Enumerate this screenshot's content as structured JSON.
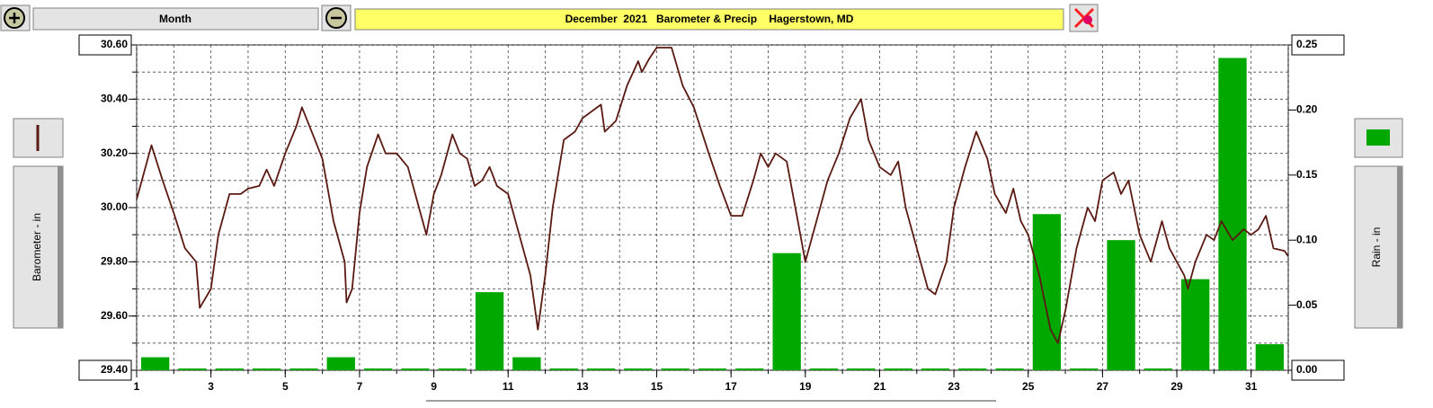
{
  "ui": {
    "period_label": "Month"
  },
  "chart_data": {
    "type": "combo",
    "title": "December  2021   Barometer & Precip    Hagerstown, MD",
    "ylabel": "Barometer - in",
    "y2label": "Rain - in",
    "xlim": [
      1,
      32
    ],
    "xticks": [
      1,
      3,
      5,
      7,
      9,
      11,
      13,
      15,
      17,
      19,
      21,
      23,
      25,
      27,
      29,
      31
    ],
    "xgrid": [
      1,
      2,
      3,
      4,
      5,
      6,
      7,
      8,
      9,
      10,
      11,
      12,
      13,
      14,
      15,
      16,
      17,
      18,
      19,
      20,
      21,
      22,
      23,
      24,
      25,
      26,
      27,
      28,
      29,
      30,
      31,
      32
    ],
    "ylim": [
      29.4,
      30.6
    ],
    "yticks": [
      {
        "value": 29.4,
        "label": "29.40"
      },
      {
        "value": 29.6,
        "label": "29.60"
      },
      {
        "value": 29.8,
        "label": "29.80"
      },
      {
        "value": 30.0,
        "label": "30.00"
      },
      {
        "value": 30.2,
        "label": "30.20"
      },
      {
        "value": 30.4,
        "label": "30.40"
      },
      {
        "value": 30.6,
        "label": "30.60"
      }
    ],
    "ygrid": [
      29.4,
      29.5,
      29.6,
      29.7,
      29.8,
      29.9,
      30.0,
      30.1,
      30.2,
      30.3,
      30.4,
      30.5,
      30.6
    ],
    "y2lim": [
      0,
      0.25
    ],
    "y2ticks": [
      {
        "value": 0,
        "label": "0.00"
      },
      {
        "value": 0.05,
        "label": "0.05"
      },
      {
        "value": 0.1,
        "label": "0.10"
      },
      {
        "value": 0.15,
        "label": "0.15"
      },
      {
        "value": 0.2,
        "label": "0.20"
      },
      {
        "value": 0.25,
        "label": "0.25"
      }
    ],
    "grid": true,
    "series": [
      {
        "type": "line",
        "color": "#5a1a12",
        "x": [
          1.0,
          1.4,
          1.7,
          2.0,
          2.3,
          2.6,
          2.7,
          3.0,
          3.2,
          3.5,
          3.8,
          4.0,
          4.3,
          4.5,
          4.7,
          5.0,
          5.3,
          5.45,
          5.8,
          6.0,
          6.3,
          6.6,
          6.65,
          6.8,
          7.0,
          7.2,
          7.5,
          7.7,
          8.0,
          8.3,
          8.5,
          8.8,
          9.0,
          9.2,
          9.5,
          9.7,
          9.9,
          10.1,
          10.3,
          10.5,
          10.7,
          11.0,
          11.3,
          11.6,
          11.8,
          12.0,
          12.2,
          12.5,
          12.8,
          13.0,
          13.3,
          13.5,
          13.6,
          13.9,
          14.2,
          14.5,
          14.6,
          14.8,
          15.0,
          15.4,
          15.7,
          16.0,
          16.4,
          16.7,
          17.0,
          17.3,
          17.6,
          17.8,
          18.0,
          18.2,
          18.5,
          18.8,
          19.0,
          19.3,
          19.6,
          19.9,
          20.2,
          20.5,
          20.7,
          21.0,
          21.3,
          21.5,
          21.7,
          22.0,
          22.3,
          22.5,
          22.8,
          23.0,
          23.3,
          23.6,
          23.9,
          24.1,
          24.4,
          24.6,
          24.8,
          25.0,
          25.3,
          25.6,
          25.8,
          26.0,
          26.3,
          26.6,
          26.8,
          27.0,
          27.3,
          27.5,
          27.7,
          28.0,
          28.3,
          28.6,
          28.8,
          29.0,
          29.2,
          29.3,
          29.5,
          29.8,
          30.0,
          30.2,
          30.5,
          30.8,
          31.0,
          31.2,
          31.4,
          31.6,
          31.9,
          32.0
        ],
        "values": [
          30.03,
          30.23,
          30.1,
          29.98,
          29.85,
          29.8,
          29.63,
          29.7,
          29.9,
          30.05,
          30.05,
          30.07,
          30.08,
          30.14,
          30.08,
          30.2,
          30.3,
          30.37,
          30.25,
          30.18,
          29.95,
          29.8,
          29.65,
          29.7,
          29.98,
          30.15,
          30.27,
          30.2,
          30.2,
          30.15,
          30.05,
          29.9,
          30.05,
          30.12,
          30.27,
          30.2,
          30.18,
          30.08,
          30.1,
          30.15,
          30.08,
          30.05,
          29.9,
          29.75,
          29.55,
          29.75,
          30.0,
          30.25,
          30.28,
          30.33,
          30.36,
          30.38,
          30.28,
          30.32,
          30.45,
          30.54,
          30.5,
          30.55,
          30.59,
          30.59,
          30.45,
          30.37,
          30.2,
          30.08,
          29.97,
          29.97,
          30.1,
          30.2,
          30.15,
          30.2,
          30.17,
          29.95,
          29.8,
          29.95,
          30.1,
          30.2,
          30.33,
          30.4,
          30.25,
          30.15,
          30.12,
          30.17,
          30.0,
          29.85,
          29.7,
          29.68,
          29.8,
          30.0,
          30.15,
          30.28,
          30.18,
          30.05,
          29.98,
          30.07,
          29.95,
          29.9,
          29.75,
          29.55,
          29.5,
          29.62,
          29.85,
          30.0,
          29.95,
          30.1,
          30.13,
          30.05,
          30.1,
          29.9,
          29.8,
          29.95,
          29.85,
          29.8,
          29.75,
          29.7,
          29.8,
          29.9,
          29.88,
          29.95,
          29.88,
          29.92,
          29.9,
          29.92,
          29.97,
          29.85,
          29.84,
          29.82
        ]
      },
      {
        "type": "bar",
        "axis": "y2",
        "color": "#00a800",
        "x": [
          1,
          2,
          3,
          4,
          5,
          6,
          7,
          8,
          9,
          10,
          11,
          12,
          13,
          14,
          15,
          16,
          17,
          18,
          19,
          20,
          21,
          22,
          23,
          24,
          25,
          26,
          27,
          28,
          29,
          30,
          31
        ],
        "values": [
          0.01,
          0,
          0,
          0,
          0,
          0.01,
          0,
          0,
          0,
          0.06,
          0.01,
          0,
          0,
          0,
          0,
          0,
          0,
          0.09,
          0,
          0,
          0,
          0,
          0,
          0,
          0.12,
          0,
          0.1,
          0,
          0.07,
          0.24,
          0.02
        ]
      }
    ]
  }
}
